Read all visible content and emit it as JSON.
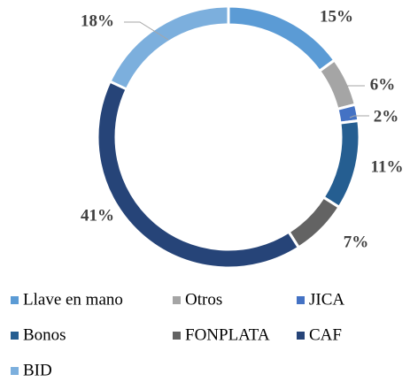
{
  "chart_data": {
    "type": "donut",
    "categories": [
      "Llave en mano",
      "Otros",
      "JICA",
      "Bonos",
      "FONPLATA",
      "CAF",
      "BID"
    ],
    "series": [
      {
        "values": [
          15,
          6,
          2,
          11,
          7,
          41,
          18
        ],
        "value_labels": [
          "15%",
          "6%",
          "2%",
          "11%",
          "7%",
          "41%",
          "18%"
        ],
        "colors": [
          "#5b9bd5",
          "#a5a5a5",
          "#4472c4",
          "#255e91",
          "#636363",
          "#264478",
          "#7cafdd"
        ]
      }
    ],
    "legend": "bottom"
  }
}
